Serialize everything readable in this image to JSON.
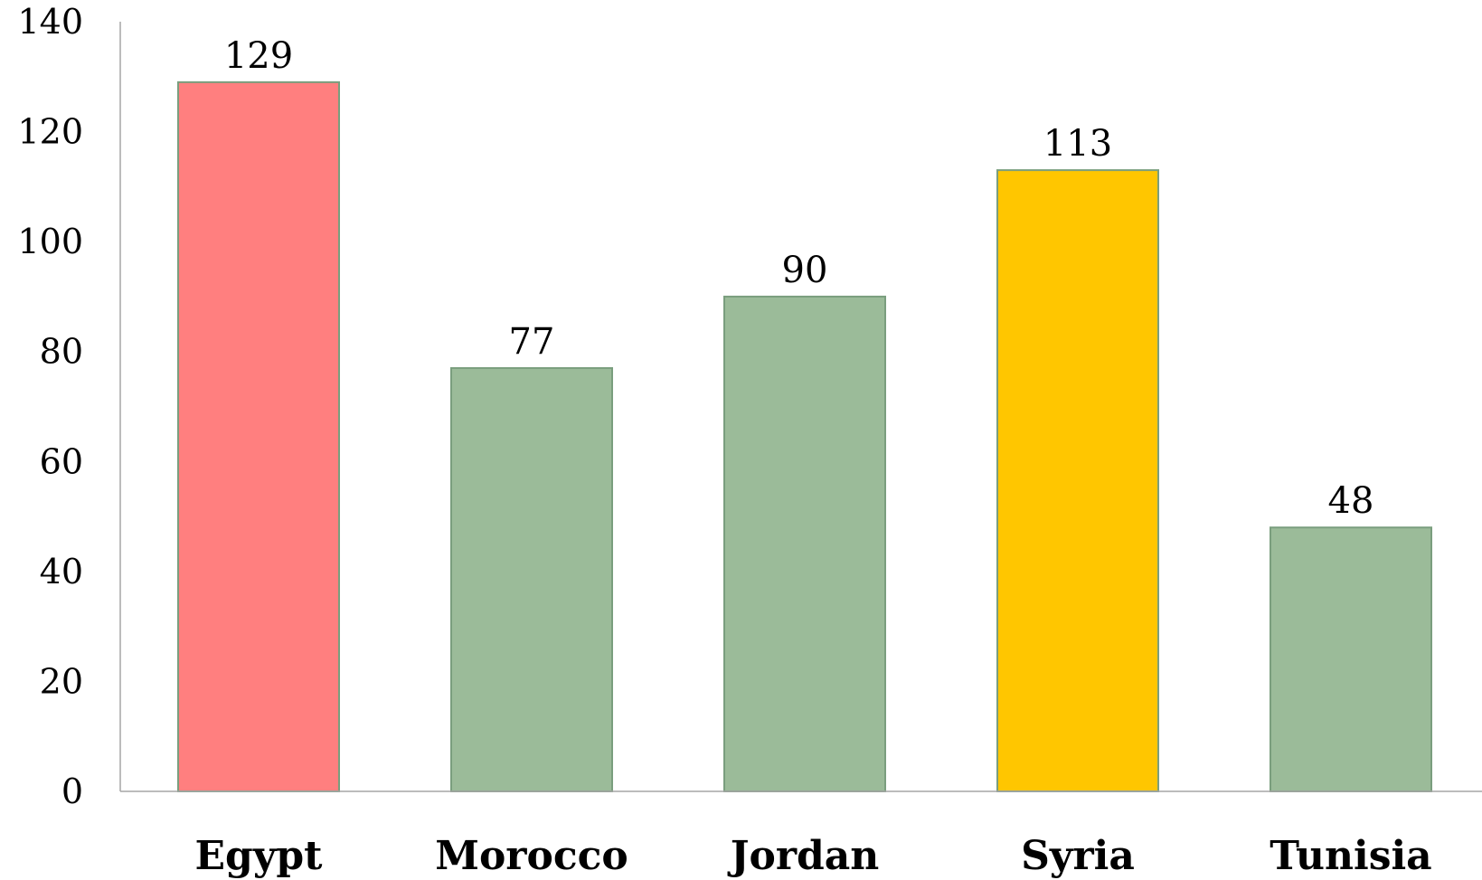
{
  "chart_data": {
    "type": "bar",
    "title": "",
    "xlabel": "",
    "ylabel": "",
    "categories": [
      "Egypt",
      "Morocco",
      "Jordan",
      "Syria",
      "Tunisia"
    ],
    "values": [
      129,
      77,
      90,
      113,
      48
    ],
    "data_labels": [
      "129",
      "77",
      "90",
      "113",
      "48"
    ],
    "bar_colors": [
      "#FF7F7F",
      "#9BBB99",
      "#9BBB99",
      "#FFC600",
      "#9BBB99"
    ],
    "bar_border_color": "#7A9E7E",
    "ylim": [
      0,
      140
    ],
    "yticks": [
      0,
      20,
      40,
      60,
      80,
      100,
      120,
      140
    ],
    "ytick_labels": [
      "0",
      "20",
      "40",
      "60",
      "80",
      "100",
      "120",
      "140"
    ],
    "grid": false,
    "legend": "none"
  }
}
